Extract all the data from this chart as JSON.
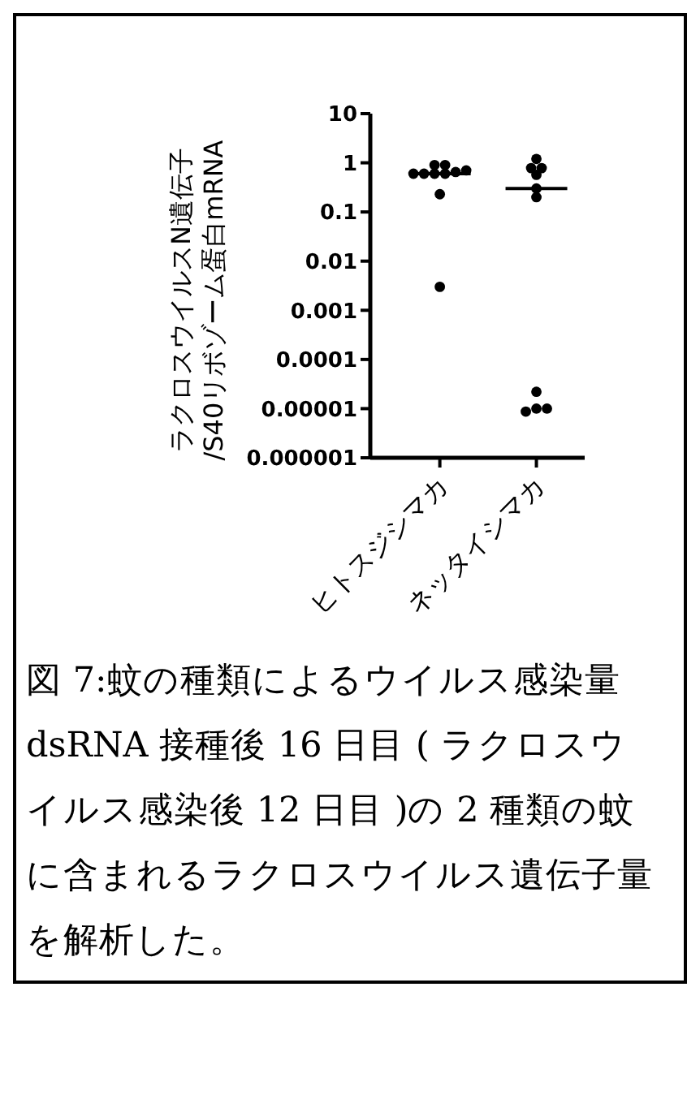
{
  "chart_data": {
    "type": "scatter",
    "ylabel": "ラクロスウイルスN遺伝子\n/S40リボゾーム蛋白mRNA",
    "categories": [
      "ヒトスジシマカ",
      "ネッタイシマカ"
    ],
    "log": true,
    "ylim": [
      1e-06,
      10
    ],
    "yticks": [
      10,
      1,
      0.1,
      0.01,
      0.001,
      0.0001,
      {
        "value": 1e-05,
        "label": "0.00001"
      },
      {
        "value": 1e-06,
        "label": "0.000001"
      }
    ],
    "grid": false,
    "legend": false,
    "marker": "circle",
    "series": [
      {
        "type": "scatter",
        "color": "#000000",
        "x": [
          "ヒトスジシマカ",
          "ヒトスジシマカ",
          "ヒトスジシマカ",
          "ヒトスジシマカ",
          "ヒトスジシマカ",
          "ヒトスジシマカ",
          "ヒトスジシマカ",
          "ヒトスジシマカ",
          "ヒトスジシマカ",
          "ヒトスジシマカ"
        ],
        "values": [
          0.6,
          0.65,
          0.9,
          0.6,
          0.6,
          0.9,
          0.6,
          0.7,
          0.23,
          0.003
        ]
      },
      {
        "type": "scatter",
        "color": "#000000",
        "x": [
          "ネッタイシマカ",
          "ネッタイシマカ",
          "ネッタイシマカ",
          "ネッタイシマカ",
          "ネッタイシマカ",
          "ネッタイシマカ",
          "ネッタイシマカ",
          "ネッタイシマカ",
          "ネッタイシマカ",
          "ネッタイシマカ"
        ],
        "values": [
          0.78,
          0.78,
          1.2,
          0.57,
          0.3,
          0.2,
          8.7e-06,
          1e-05,
          2.2e-05,
          1e-05
        ]
      },
      {
        "type": "box",
        "color": "#000000",
        "boxes": [
          {
            "low": 0.6,
            "q1": 0.6,
            "median": 0.6,
            "q3": 0.6,
            "high": 0.6
          },
          {
            "low": 0.3,
            "q1": 0.3,
            "median": 0.3,
            "q3": 0.3,
            "high": 0.3
          }
        ]
      }
    ],
    "annotations": [
      "図 7:蚊の種類によるウイルス感染量 dsRNA 接種後 16 日目 ( ラクロスウイルス感染後 12 日目 )の 2 種類の蚊に含まれるラクロスウイルス遺伝子量を解析した。"
    ]
  }
}
